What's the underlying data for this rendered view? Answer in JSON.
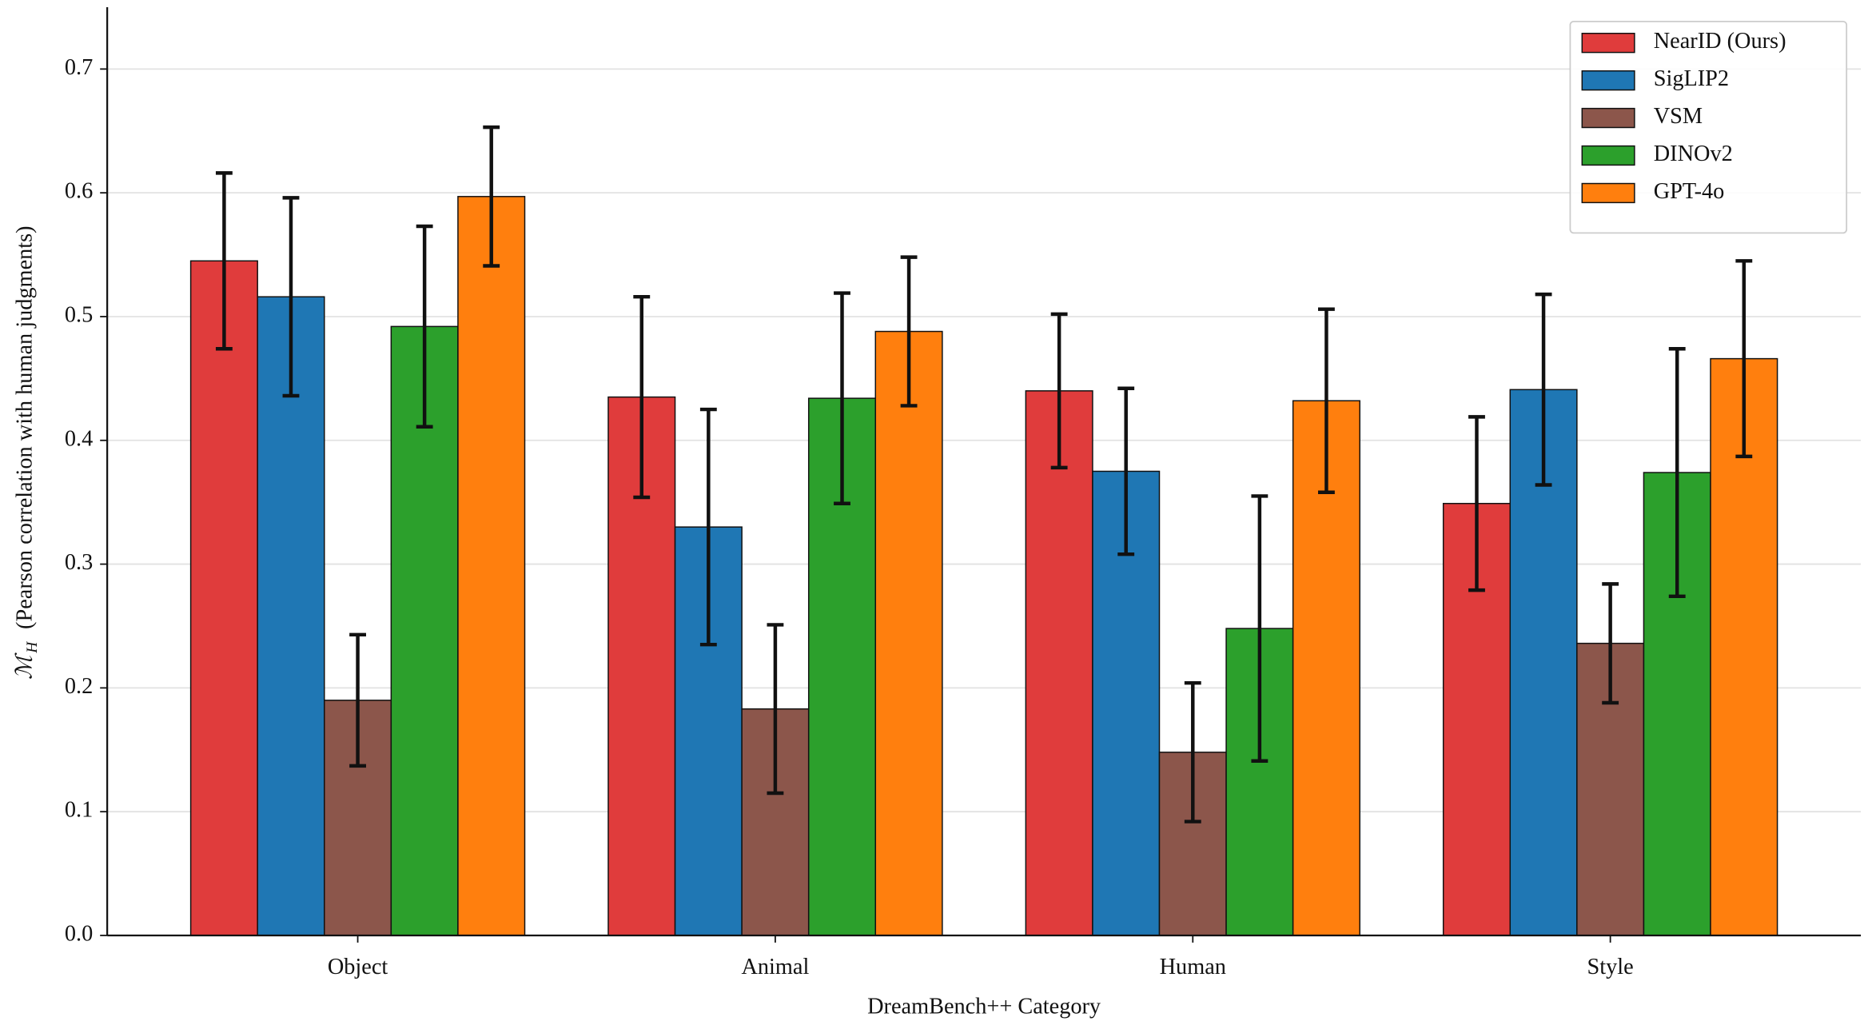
{
  "chart_data": {
    "type": "bar",
    "xlabel": "DreamBench++ Category",
    "ylabel_symbol": "ℳ",
    "ylabel_subscript": "H",
    "ylabel": "(Pearson correlation with human judgments)",
    "categories": [
      "Object",
      "Animal",
      "Human",
      "Style"
    ],
    "series": [
      {
        "name": "NearID (Ours)",
        "color": "#e03c3c",
        "values": [
          0.545,
          0.435,
          0.44,
          0.349
        ],
        "errors": [
          0.071,
          0.081,
          0.062,
          0.07
        ]
      },
      {
        "name": "SigLIP2",
        "color": "#1f77b4",
        "values": [
          0.516,
          0.33,
          0.375,
          0.441
        ],
        "errors": [
          0.08,
          0.095,
          0.067,
          0.077
        ]
      },
      {
        "name": "VSM",
        "color": "#8c564b",
        "values": [
          0.19,
          0.183,
          0.148,
          0.236
        ],
        "errors": [
          0.053,
          0.068,
          0.056,
          0.048
        ]
      },
      {
        "name": "DINOv2",
        "color": "#2ca02c",
        "values": [
          0.492,
          0.434,
          0.248,
          0.374
        ],
        "errors": [
          0.081,
          0.085,
          0.107,
          0.1
        ]
      },
      {
        "name": "GPT-4o",
        "color": "#ff7f0e",
        "values": [
          0.597,
          0.488,
          0.432,
          0.466
        ],
        "errors": [
          0.056,
          0.06,
          0.074,
          0.079
        ]
      }
    ],
    "ylim": [
      0,
      0.75
    ],
    "yticks": [
      {
        "value": 0,
        "label": "0.0"
      },
      0.1,
      0.2,
      0.3,
      0.4,
      0.5,
      0.6,
      0.7
    ],
    "grid": true,
    "legend": "upper right"
  }
}
